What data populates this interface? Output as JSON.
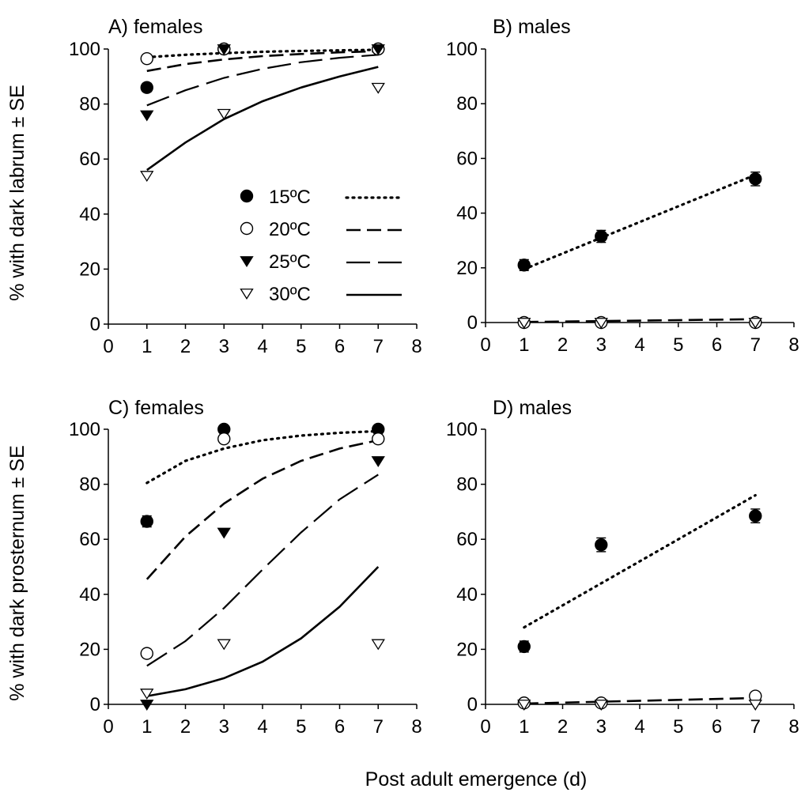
{
  "chart_data": [
    {
      "id": "A",
      "type": "scatter",
      "title": "A) females",
      "ylabel": "% with dark labrum ± SE",
      "xlim": [
        0,
        8
      ],
      "ylim": [
        0,
        100
      ],
      "xticks": [
        0,
        1,
        2,
        3,
        4,
        5,
        6,
        7,
        8
      ],
      "yticks": [
        0,
        20,
        40,
        60,
        80,
        100
      ],
      "legend": {
        "placement": "center",
        "entries": [
          {
            "label": "15ºC",
            "marker": "filled-circle",
            "line": "dotted"
          },
          {
            "label": "20ºC",
            "marker": "open-circle",
            "line": "short-dash"
          },
          {
            "label": "25ºC",
            "marker": "filled-triangle",
            "line": "long-dash"
          },
          {
            "label": "30ºC",
            "marker": "open-triangle",
            "line": "solid"
          }
        ]
      },
      "series": [
        {
          "name": "15ºC",
          "marker": "filled-circle",
          "line": "dotted",
          "x": [
            1,
            3,
            7
          ],
          "y": [
            86,
            100,
            100
          ],
          "se": [
            1.5,
            1.2,
            0.5
          ],
          "fit": {
            "x": [
              1,
              2,
              3,
              4,
              5,
              6,
              7
            ],
            "y": [
              97,
              97.9,
              98.5,
              99,
              99.3,
              99.5,
              99.7
            ]
          }
        },
        {
          "name": "20ºC",
          "marker": "open-circle",
          "line": "short-dash",
          "x": [
            1,
            3,
            7
          ],
          "y": [
            96.5,
            100,
            100
          ],
          "se": [
            1,
            0.5,
            0.5
          ],
          "fit": {
            "x": [
              1,
              2,
              3,
              4,
              5,
              6,
              7
            ],
            "y": [
              92,
              94.5,
              96.2,
              97.4,
              98.2,
              98.8,
              99.2
            ]
          }
        },
        {
          "name": "25ºC",
          "marker": "filled-triangle",
          "line": "long-dash",
          "x": [
            1,
            3,
            7
          ],
          "y": [
            76,
            100,
            100
          ],
          "se": [
            0,
            0,
            0
          ],
          "fit": {
            "x": [
              1,
              2,
              3,
              4,
              5,
              6,
              7
            ],
            "y": [
              79.5,
              85,
              89.5,
              92.8,
              95.2,
              96.8,
              97.9
            ]
          }
        },
        {
          "name": "30ºC",
          "marker": "open-triangle",
          "line": "solid",
          "x": [
            1,
            3,
            7
          ],
          "y": [
            54,
            76.5,
            86
          ],
          "se": [
            0,
            0,
            0
          ],
          "fit": {
            "x": [
              1,
              2,
              3,
              4,
              5,
              6,
              7
            ],
            "y": [
              56,
              66,
              74.5,
              81,
              86,
              90,
              93.5
            ]
          }
        }
      ]
    },
    {
      "id": "B",
      "type": "scatter",
      "title": "B) males",
      "ylabel": "",
      "xlim": [
        0,
        8
      ],
      "ylim": [
        0,
        100
      ],
      "xticks": [
        0,
        1,
        2,
        3,
        4,
        5,
        6,
        7,
        8
      ],
      "yticks": [
        0,
        20,
        40,
        60,
        80,
        100
      ],
      "series": [
        {
          "name": "15ºC",
          "marker": "filled-circle",
          "line": "dotted",
          "x": [
            1,
            3,
            7
          ],
          "y": [
            21,
            31.5,
            52.5
          ],
          "se": [
            2,
            2.2,
            2.5
          ],
          "fit": {
            "x": [
              1,
              7
            ],
            "y": [
              19.5,
              54
            ]
          }
        },
        {
          "name": "20ºC",
          "marker": "open-circle",
          "line": "short-dash",
          "x": [
            1,
            3,
            7
          ],
          "y": [
            0,
            0,
            0
          ],
          "se": [
            0,
            0,
            0
          ],
          "fit": {
            "x": [
              1,
              7
            ],
            "y": [
              0.2,
              1.2
            ]
          }
        },
        {
          "name": "30ºC",
          "marker": "open-triangle",
          "line": "none",
          "x": [
            1,
            3,
            7
          ],
          "y": [
            0,
            0,
            0
          ],
          "se": [
            0,
            0,
            0
          ]
        }
      ]
    },
    {
      "id": "C",
      "type": "scatter",
      "title": "C) females",
      "ylabel": "% with dark prosternum ± SE",
      "xlim": [
        0,
        8
      ],
      "ylim": [
        0,
        100
      ],
      "xticks": [
        0,
        1,
        2,
        3,
        4,
        5,
        6,
        7,
        8
      ],
      "yticks": [
        0,
        20,
        40,
        60,
        80,
        100
      ],
      "series": [
        {
          "name": "15ºC",
          "marker": "filled-circle",
          "line": "dotted",
          "x": [
            1,
            3,
            7
          ],
          "y": [
            66.5,
            100,
            100
          ],
          "se": [
            2,
            0,
            0
          ],
          "fit": {
            "x": [
              1,
              2,
              3,
              4,
              5,
              6,
              7
            ],
            "y": [
              80.5,
              88.5,
              93,
              96,
              97.7,
              98.7,
              99.3
            ]
          }
        },
        {
          "name": "20ºC",
          "marker": "open-circle",
          "line": "short-dash",
          "x": [
            1,
            3,
            7
          ],
          "y": [
            18.5,
            96.5,
            96.5
          ],
          "se": [
            1.5,
            1,
            1
          ],
          "fit": {
            "x": [
              1,
              2,
              3,
              4,
              5,
              6,
              7
            ],
            "y": [
              45.5,
              61,
              73,
              82,
              88.5,
              93,
              96
            ]
          }
        },
        {
          "name": "25ºC",
          "marker": "filled-triangle",
          "line": "long-dash",
          "x": [
            1,
            3,
            7
          ],
          "y": [
            0,
            62.5,
            88.5
          ],
          "se": [
            0,
            0,
            0
          ],
          "fit": {
            "x": [
              1,
              2,
              3,
              4,
              5,
              6,
              7
            ],
            "y": [
              14,
              23,
              35,
              49,
              62.5,
              74.5,
              83.5
            ]
          }
        },
        {
          "name": "30ºC",
          "marker": "open-triangle",
          "line": "solid",
          "x": [
            1,
            3,
            7
          ],
          "y": [
            4,
            22,
            22
          ],
          "se": [
            0,
            0,
            0
          ],
          "fit": {
            "x": [
              1,
              2,
              3,
              4,
              5,
              6,
              7
            ],
            "y": [
              3,
              5.5,
              9.5,
              15.5,
              24,
              35.5,
              50
            ]
          }
        }
      ]
    },
    {
      "id": "D",
      "type": "scatter",
      "title": "D) males",
      "ylabel": "",
      "xlim": [
        0,
        8
      ],
      "ylim": [
        0,
        100
      ],
      "xticks": [
        0,
        1,
        2,
        3,
        4,
        5,
        6,
        7,
        8
      ],
      "yticks": [
        0,
        20,
        40,
        60,
        80,
        100
      ],
      "series": [
        {
          "name": "15ºC",
          "marker": "filled-circle",
          "line": "dotted",
          "x": [
            1,
            3,
            7
          ],
          "y": [
            21,
            58,
            68.5
          ],
          "se": [
            2,
            2.5,
            2.5
          ],
          "fit": {
            "x": [
              1,
              7
            ],
            "y": [
              28,
              76
            ]
          }
        },
        {
          "name": "20ºC",
          "marker": "open-circle",
          "line": "short-dash",
          "x": [
            1,
            3,
            7
          ],
          "y": [
            0.5,
            0.5,
            3
          ],
          "se": [
            0,
            0,
            0
          ],
          "fit": {
            "x": [
              1,
              7
            ],
            "y": [
              0.3,
              2.3
            ]
          }
        },
        {
          "name": "30ºC",
          "marker": "open-triangle",
          "line": "none",
          "x": [
            1,
            3,
            7
          ],
          "y": [
            0,
            0,
            0
          ],
          "se": [
            0,
            0,
            0
          ]
        }
      ]
    }
  ],
  "xlabel": "Post adult emergence (d)"
}
